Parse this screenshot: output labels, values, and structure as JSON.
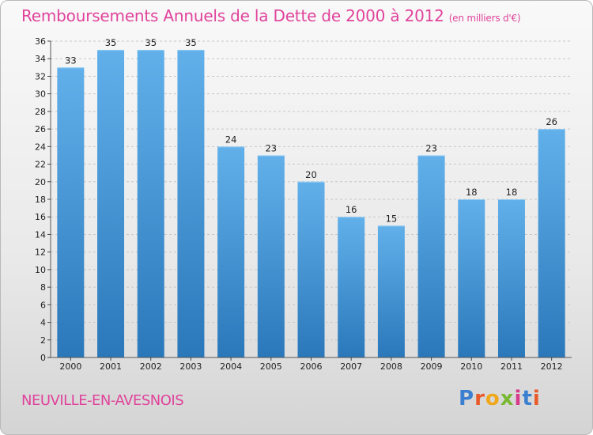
{
  "header": {
    "title": "Remboursements Annuels de la Dette de 2000 à 2012",
    "subtitle": "(en milliers d'€)"
  },
  "footer": {
    "commune": "NEUVILLE-EN-AVESNOIS",
    "logo_letters": [
      "P",
      "r",
      "o",
      "x",
      "i",
      "t",
      "i"
    ],
    "logo_colors": [
      "#3a7fd0",
      "#e85a2a",
      "#f0a81a",
      "#7ab834",
      "#d63a8c",
      "#3a7fd0",
      "#e85a2a"
    ]
  },
  "colors": {
    "bar_top": "#62b0ea",
    "bar_bottom": "#2a78ba",
    "accent": "#e0439b"
  },
  "chart_data": {
    "type": "bar",
    "categories": [
      "2000",
      "2001",
      "2002",
      "2003",
      "2004",
      "2005",
      "2006",
      "2007",
      "2008",
      "2009",
      "2010",
      "2011",
      "2012"
    ],
    "values": [
      33,
      35,
      35,
      35,
      24,
      23,
      20,
      16,
      15,
      23,
      18,
      18,
      26
    ],
    "ylim": [
      0,
      36
    ],
    "yticks": [
      0,
      2,
      4,
      6,
      8,
      10,
      12,
      14,
      16,
      18,
      20,
      22,
      24,
      26,
      28,
      30,
      32,
      34,
      36
    ],
    "grid": true,
    "xlabel": "",
    "ylabel": ""
  }
}
